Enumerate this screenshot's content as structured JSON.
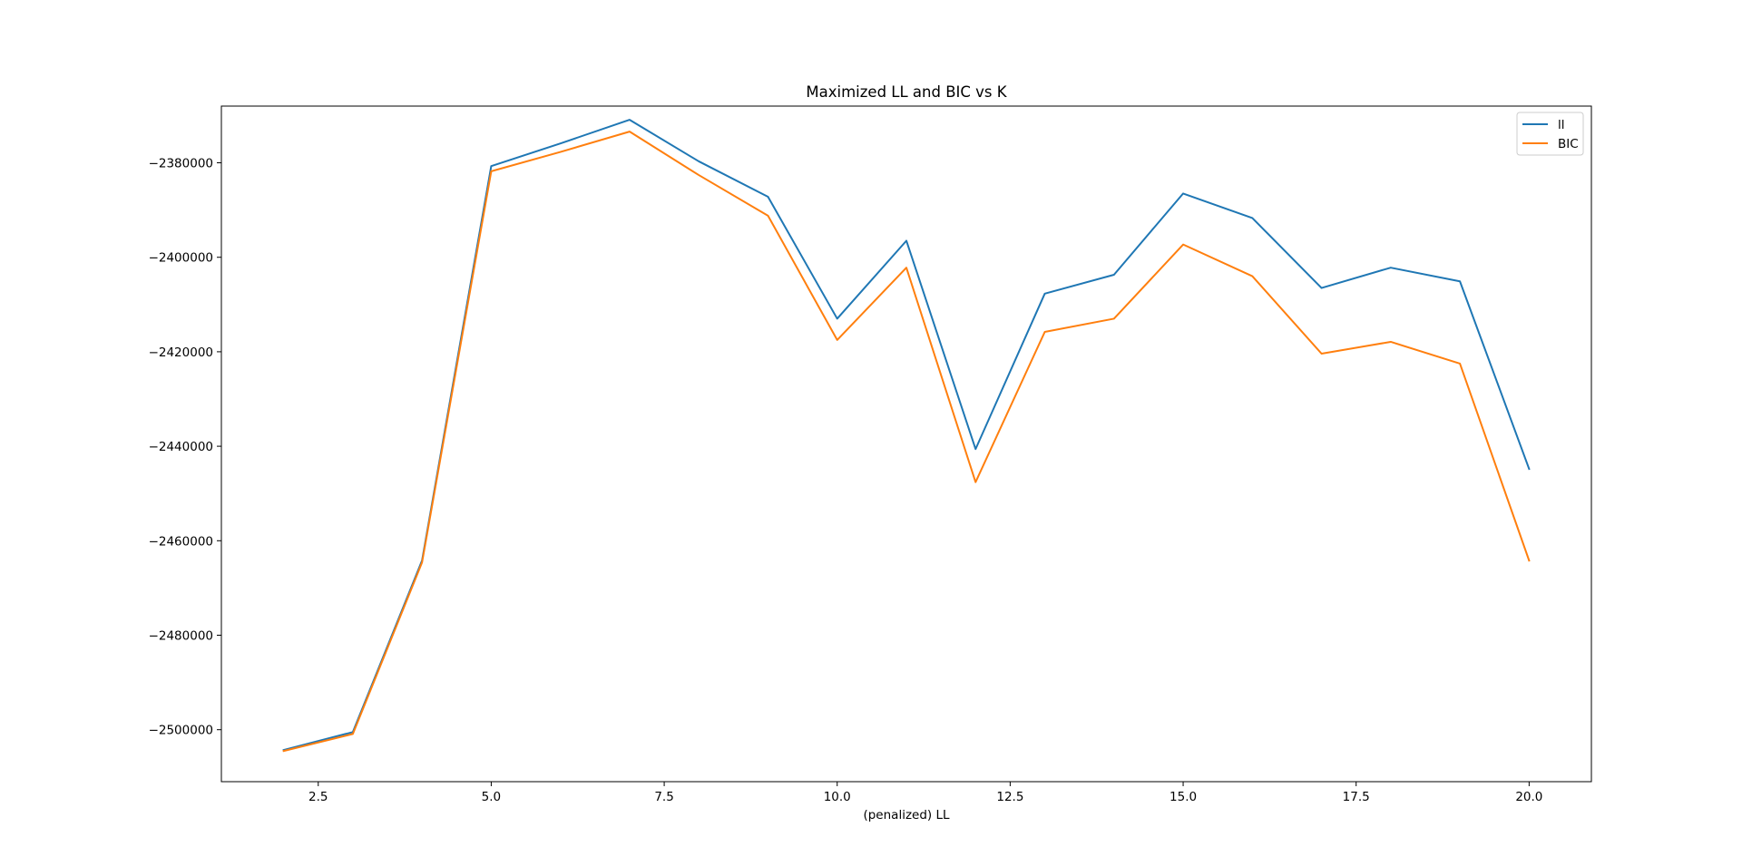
{
  "chart_data": {
    "type": "line",
    "title": "Maximized LL and BIC vs K",
    "xlabel": "(penalized) LL",
    "ylabel": "",
    "xlim": [
      1.1,
      20.9
    ],
    "ylim": [
      -2511000,
      -2368000
    ],
    "grid": false,
    "legend_position": "top-right",
    "xticks": [
      2.5,
      5.0,
      7.5,
      10.0,
      12.5,
      15.0,
      17.5,
      20.0
    ],
    "xtick_labels": [
      "2.5",
      "5.0",
      "7.5",
      "10.0",
      "12.5",
      "15.0",
      "17.5",
      "20.0"
    ],
    "yticks": [
      -2380000,
      -2400000,
      -2420000,
      -2440000,
      -2460000,
      -2480000,
      -2500000
    ],
    "ytick_labels": [
      "−2380000",
      "−2400000",
      "−2420000",
      "−2440000",
      "−2460000",
      "−2480000",
      "−2500000"
    ],
    "x": [
      2,
      3,
      4,
      5,
      6,
      7,
      8,
      9,
      10,
      11,
      12,
      13,
      14,
      15,
      16,
      17,
      18,
      19,
      20
    ],
    "series": [
      {
        "name": "ll",
        "color": "#1f77b4",
        "values": [
          -2504300,
          -2500500,
          -2464200,
          -2380700,
          -2375900,
          -2370900,
          -2379700,
          -2387200,
          -2413000,
          -2396500,
          -2440600,
          -2407700,
          -2403700,
          -2386500,
          -2391700,
          -2406500,
          -2402200,
          -2405100,
          -2444800
        ]
      },
      {
        "name": "BIC",
        "color": "#ff7f0e",
        "values": [
          -2504500,
          -2500900,
          -2464600,
          -2381800,
          -2377700,
          -2373400,
          -2382600,
          -2391200,
          -2417500,
          -2402200,
          -2447600,
          -2415800,
          -2413000,
          -2397300,
          -2404000,
          -2420400,
          -2417900,
          -2422500,
          -2464200
        ]
      }
    ]
  }
}
